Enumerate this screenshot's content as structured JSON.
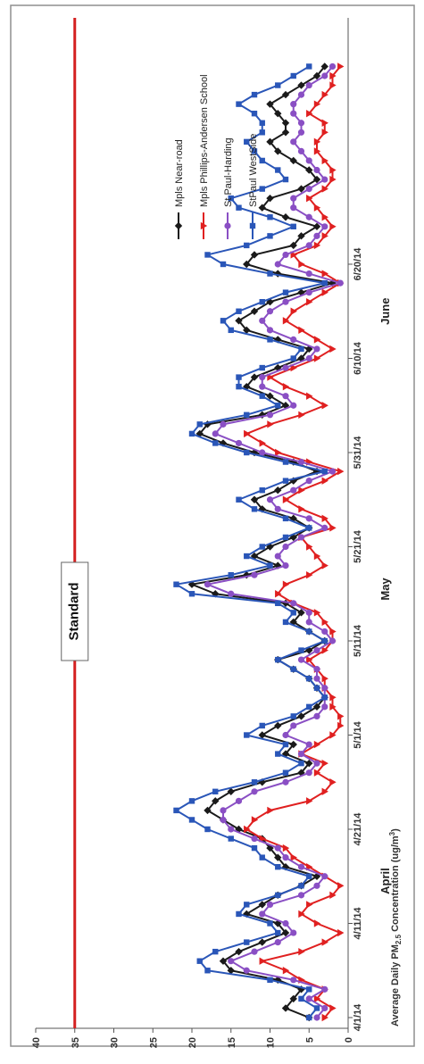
{
  "chart_data": {
    "type": "line",
    "orientation": "rotated-90-ccw",
    "ylabel": "Average Daily PM2.5 Concentration (ug/m³)",
    "ylabel_parts": {
      "pre": "Average Daily PM",
      "sub": "2.5",
      "mid": " Concentration (ug/m",
      "sup": "3",
      "post": ")"
    },
    "ylim": [
      0,
      40
    ],
    "yticks": [
      "0",
      "5",
      "10",
      "15",
      "20",
      "25",
      "30",
      "35",
      "40"
    ],
    "x_start": "2014-04-01",
    "x_tick_labels": [
      {
        "date": "2014-04-01",
        "label": "4/1/14"
      },
      {
        "date": "2014-04-11",
        "label": "4/11/14"
      },
      {
        "date": "2014-04-21",
        "label": "4/21/14"
      },
      {
        "date": "2014-05-01",
        "label": "5/1/14"
      },
      {
        "date": "2014-05-11",
        "label": "5/11/14"
      },
      {
        "date": "2014-05-21",
        "label": "5/21/14"
      },
      {
        "date": "2014-05-31",
        "label": "5/31/14"
      },
      {
        "date": "2014-06-10",
        "label": "6/10/14"
      },
      {
        "date": "2014-06-20",
        "label": "6/20/14"
      }
    ],
    "months": [
      "April",
      "May",
      "June"
    ],
    "grid": false,
    "legend_position": "top-right",
    "standard": {
      "label": "Standard",
      "value": 35,
      "color": "#d42020"
    },
    "series": [
      {
        "name": "Mpls Near-road",
        "color": "#1a1a1a",
        "marker": "diamond",
        "values": [
          5,
          8,
          7,
          6,
          9,
          15,
          16,
          14,
          11,
          8,
          9,
          13,
          11,
          9,
          6,
          4,
          8,
          9,
          10,
          11,
          14,
          16,
          18,
          17,
          15,
          11,
          6,
          5,
          8,
          7,
          11,
          9,
          6,
          4,
          3,
          4,
          5,
          7,
          9,
          5,
          3,
          5,
          7,
          6,
          8,
          17,
          20,
          13,
          9,
          12,
          10,
          7,
          5,
          7,
          11,
          12,
          9,
          7,
          4,
          7,
          12,
          16,
          19,
          18,
          11,
          8,
          10,
          13,
          12,
          9,
          6,
          5,
          9,
          13,
          14,
          12,
          10,
          6,
          2,
          9,
          13,
          12,
          7,
          6,
          4,
          8,
          11,
          10,
          6,
          4,
          5,
          7,
          9,
          10,
          8,
          8,
          9,
          10,
          8,
          6,
          4,
          3
        ]
      },
      {
        "name": "Mpls Phillips-Andersen School",
        "color": "#e02020",
        "marker": "triangle",
        "values": [
          3,
          2,
          4,
          3,
          6,
          8,
          11,
          6,
          3,
          1,
          4,
          6,
          5,
          2,
          1,
          3,
          5,
          7,
          8,
          11,
          13,
          12,
          10,
          5,
          3,
          2,
          4,
          3,
          6,
          4,
          2,
          1,
          1,
          2,
          2,
          3,
          3,
          4,
          5,
          3,
          2,
          2,
          3,
          4,
          7,
          9,
          8,
          5,
          3,
          4,
          5,
          6,
          2,
          3,
          6,
          8,
          6,
          3,
          1,
          5,
          9,
          11,
          13,
          10,
          6,
          3,
          5,
          8,
          10,
          7,
          4,
          2,
          4,
          6,
          8,
          7,
          5,
          3,
          1,
          3,
          6,
          7,
          4,
          3,
          2,
          3,
          4,
          5,
          3,
          2,
          2,
          3,
          4,
          4,
          3,
          3,
          5,
          4,
          3,
          2,
          2,
          1
        ]
      },
      {
        "name": "St Paul-Harding",
        "color": "#8a4fc4",
        "marker": "circle",
        "values": [
          4,
          3,
          5,
          3,
          7,
          13,
          15,
          12,
          9,
          7,
          8,
          11,
          10,
          6,
          4,
          3,
          6,
          8,
          9,
          12,
          15,
          16,
          16,
          14,
          12,
          8,
          5,
          4,
          6,
          5,
          8,
          7,
          4,
          3,
          3,
          3,
          4,
          4,
          6,
          4,
          2,
          3,
          5,
          5,
          7,
          15,
          18,
          12,
          8,
          9,
          8,
          6,
          3,
          5,
          9,
          10,
          7,
          5,
          2,
          6,
          11,
          14,
          17,
          16,
          10,
          7,
          8,
          11,
          11,
          8,
          5,
          4,
          7,
          10,
          11,
          10,
          8,
          5,
          1,
          5,
          9,
          8,
          5,
          4,
          3,
          5,
          7,
          7,
          5,
          3,
          4,
          5,
          6,
          7,
          6,
          6,
          7,
          7,
          6,
          5,
          3,
          2
        ]
      },
      {
        "name": "StPaul WestSide",
        "color": "#2a56b8",
        "marker": "square",
        "values": [
          5,
          4,
          6,
          5,
          10,
          18,
          19,
          17,
          13,
          9,
          10,
          14,
          13,
          9,
          6,
          5,
          9,
          11,
          12,
          15,
          18,
          20,
          22,
          20,
          17,
          12,
          8,
          6,
          9,
          8,
          13,
          11,
          7,
          5,
          3,
          4,
          5,
          7,
          9,
          6,
          3,
          5,
          8,
          7,
          9,
          20,
          22,
          15,
          10,
          13,
          11,
          8,
          5,
          8,
          12,
          14,
          11,
          8,
          3,
          8,
          13,
          17,
          20,
          19,
          13,
          9,
          11,
          14,
          14,
          11,
          7,
          6,
          10,
          15,
          16,
          14,
          11,
          8,
          3,
          10,
          16,
          18,
          13,
          10,
          7,
          10,
          14,
          15,
          11,
          8,
          9,
          11,
          12,
          13,
          11,
          11,
          12,
          14,
          12,
          9,
          7,
          5
        ]
      }
    ]
  }
}
